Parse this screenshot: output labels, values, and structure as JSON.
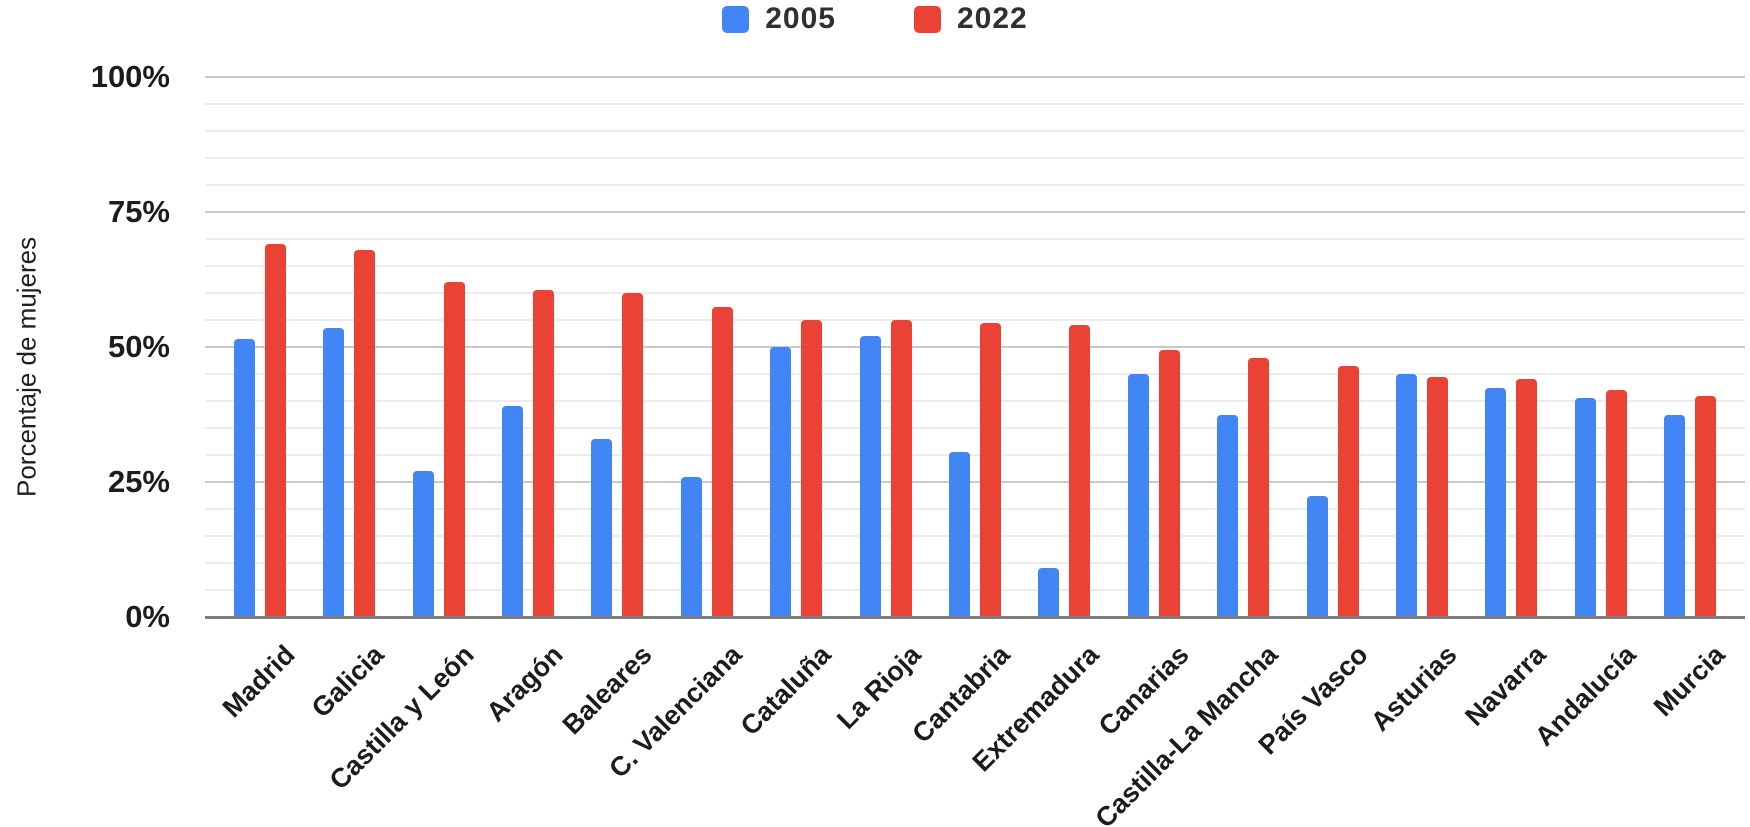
{
  "chart_data": {
    "type": "bar",
    "title": "",
    "xlabel": "",
    "ylabel": "Porcentaje de mujeres",
    "ylim": [
      0,
      100
    ],
    "yticks": [
      0,
      25,
      50,
      75,
      100
    ],
    "ytick_labels": [
      "0%",
      "25%",
      "50%",
      "75%",
      "100%"
    ],
    "grid": "horizontal; minor line every 5%, major line every 25%",
    "legend_position": "top-center",
    "categories": [
      "Madrid",
      "Galicia",
      "Castilla y León",
      "Aragón",
      "Baleares",
      "C. Valenciana",
      "Cataluña",
      "La Rioja",
      "Cantabria",
      "Extremadura",
      "Canarias",
      "Castilla-La Mancha",
      "País Vasco",
      "Asturias",
      "Navarra",
      "Andalucía",
      "Murcia"
    ],
    "series": [
      {
        "name": "2005",
        "color": "#4285F4",
        "values": [
          51.5,
          53.5,
          27,
          39,
          33,
          26,
          50,
          52,
          30.5,
          9,
          45,
          37.5,
          22.5,
          45,
          42.5,
          40.5,
          37.5
        ]
      },
      {
        "name": "2022",
        "color": "#EA4335",
        "values": [
          69,
          68,
          62,
          60.5,
          60,
          57.5,
          55,
          55,
          54.5,
          54,
          49.5,
          48,
          46.5,
          44.5,
          44,
          42,
          41
        ]
      }
    ]
  }
}
